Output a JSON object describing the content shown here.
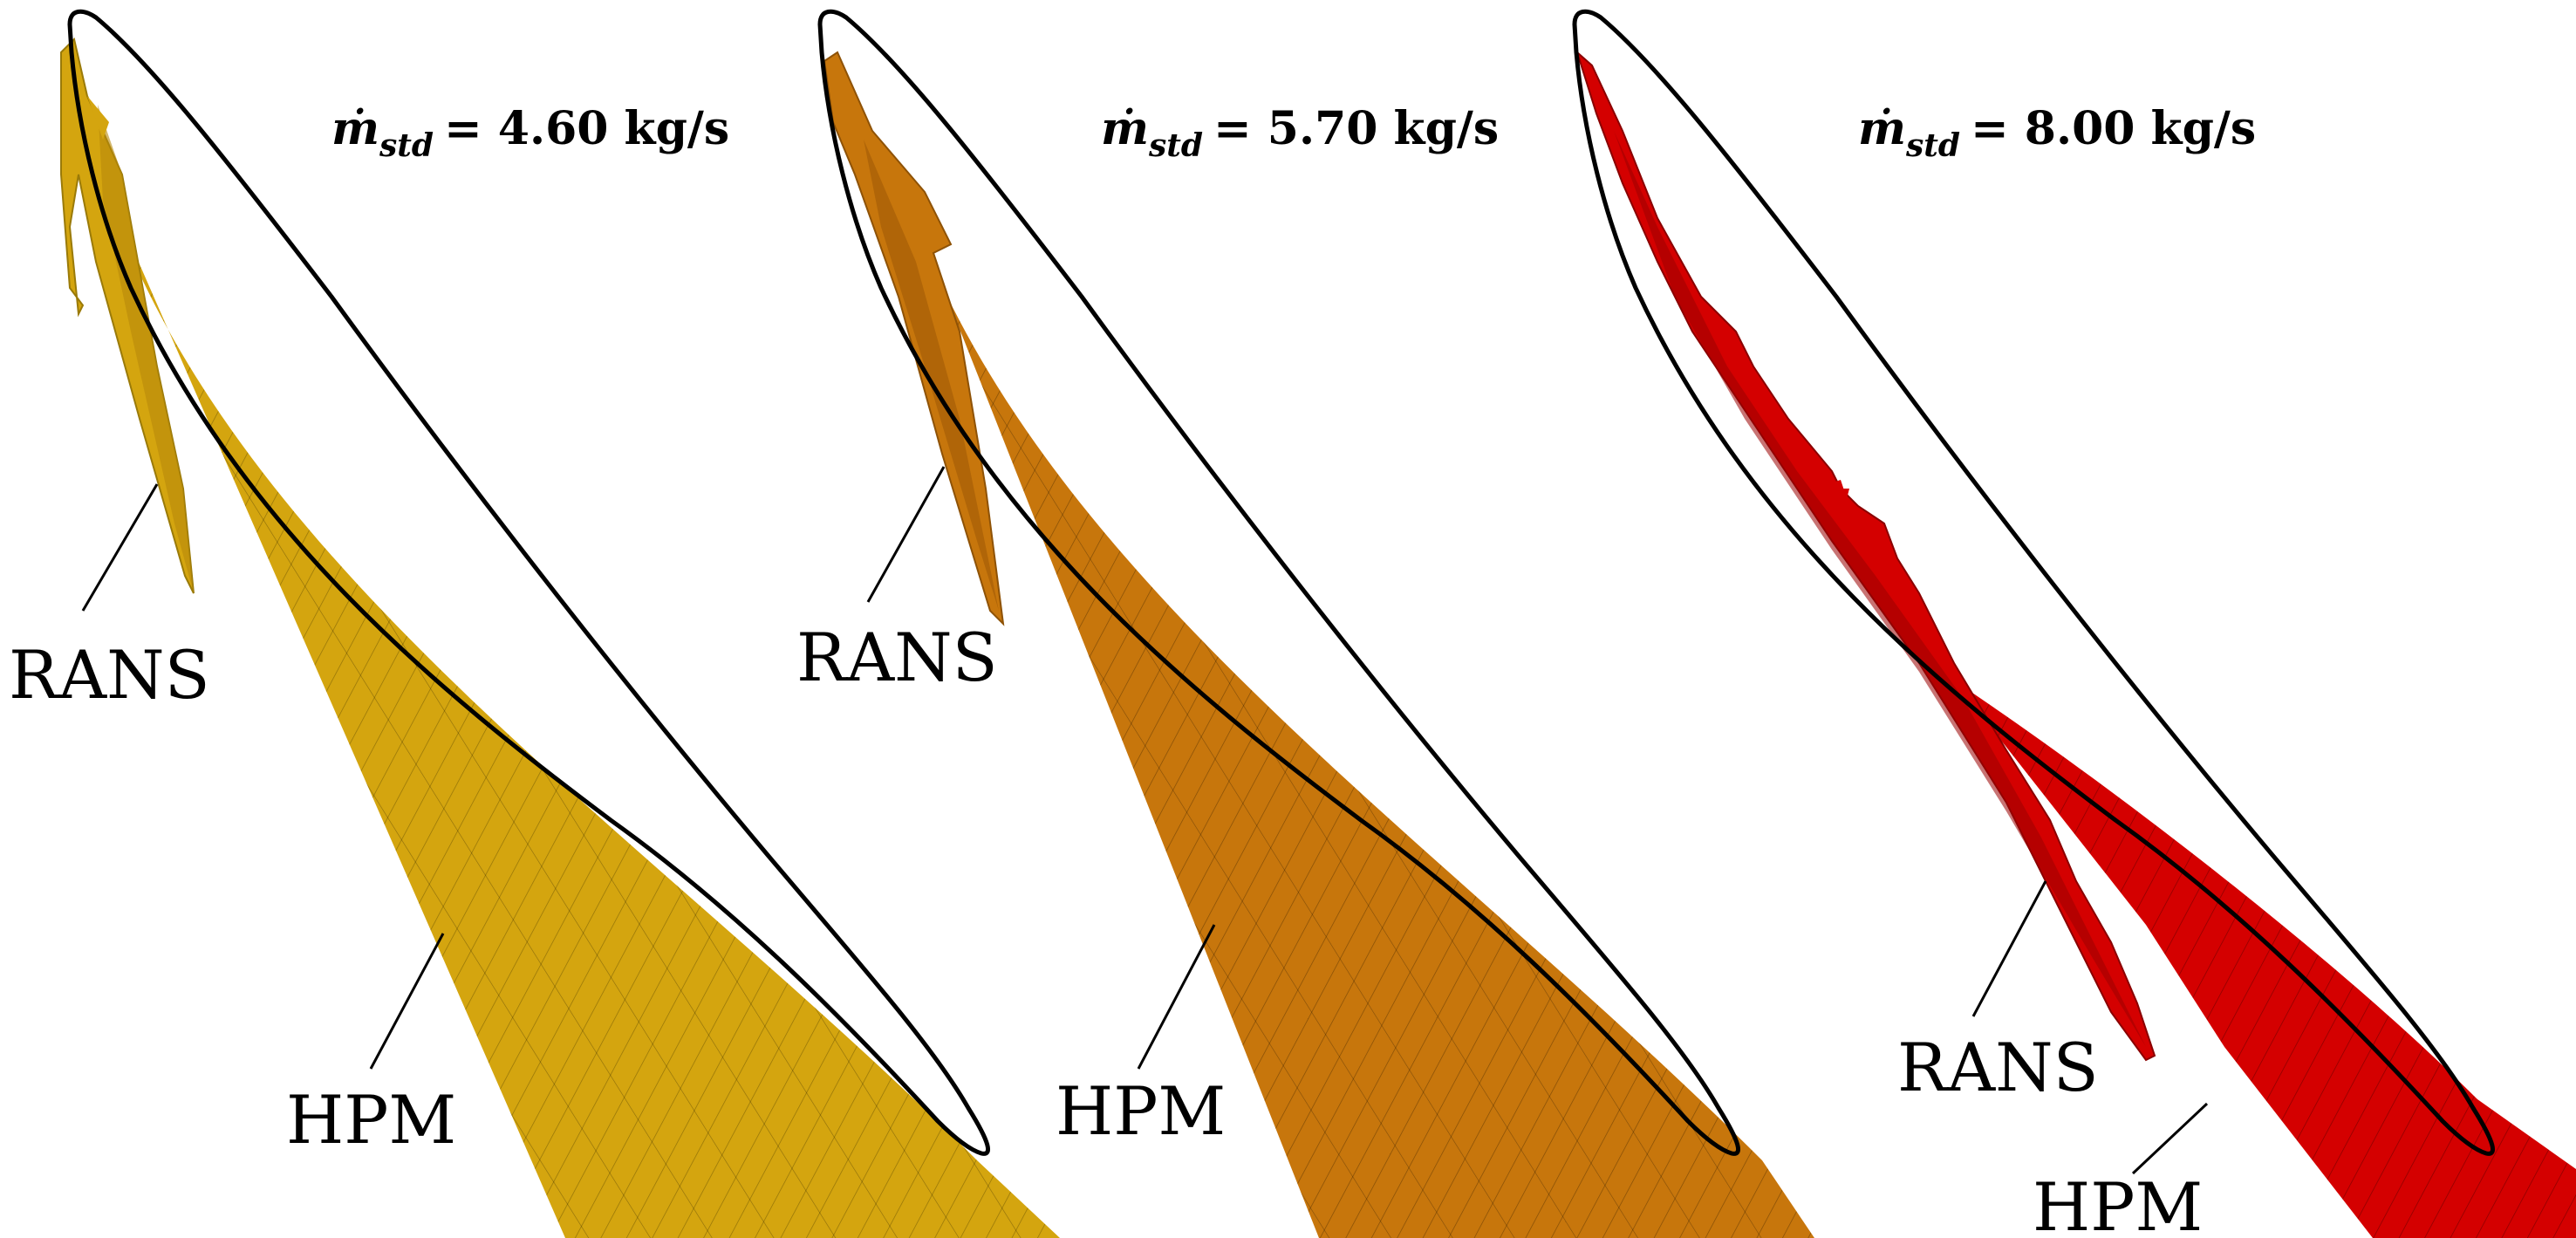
{
  "panels": [
    {
      "title": {
        "symbol": "ṁ",
        "subscript": "std",
        "value": "= 4.60 kg/s"
      },
      "rans_label": "RANS",
      "hpm_label": "HPM",
      "color": "#d4a50f",
      "color_dark": "#9a7a08"
    },
    {
      "title": {
        "symbol": "ṁ",
        "subscript": "std",
        "value": "= 5.70 kg/s"
      },
      "rans_label": "RANS",
      "hpm_label": "HPM",
      "color": "#c7760c",
      "color_dark": "#8e5206"
    },
    {
      "title": {
        "symbol": "ṁ",
        "subscript": "std",
        "value": "= 8.00 kg/s"
      },
      "rans_label": "RANS",
      "hpm_label": "HPM",
      "color": "#d40000",
      "color_dark": "#8a0000"
    }
  ]
}
